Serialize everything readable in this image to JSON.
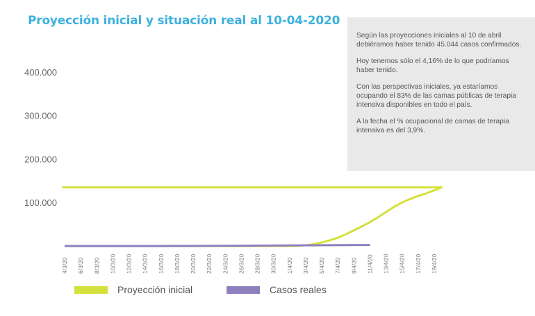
{
  "title": "Proyección inicial y situación real al 10-04-2020",
  "note": {
    "paragraphs": [
      "Según las proyecciones iniciales al 10 de abril debiéramos haber tenido 45.044 casos confirmados.",
      "Hoy tenemos sólo el 4,16% de lo que podríamos haber tenido.",
      "Con las perspectivas iniciales, ya estaríamos ocupando el 83% de las camas públicas de terapia intensiva disponibles en todo el país.",
      "A la fecha el % ocupacional de camas de terapia intensiva es del 3,9%."
    ]
  },
  "chart_data": {
    "type": "line",
    "title": "Proyección inicial y situación real al 10-04-2020",
    "xlabel": "",
    "ylabel": "",
    "ylim": [
      0,
      440000
    ],
    "y_ticks": [
      {
        "v": 100000,
        "label": "100.000"
      },
      {
        "v": 200000,
        "label": "200.000"
      },
      {
        "v": 300000,
        "label": "300.000"
      },
      {
        "v": 400000,
        "label": "400.000"
      }
    ],
    "x_tick_labels": [
      "4/3/20",
      "6/3/20",
      "8/3/20",
      "10/3/20",
      "12/3/20",
      "14/3/20",
      "16/3/20",
      "18/3/20",
      "20/3/20",
      "22/3/20",
      "24/3/20",
      "26/3/20",
      "28/3/20",
      "30/3/20",
      "1/4/20",
      "3/4/20",
      "5/4/20",
      "7/4/20",
      "9/4/20",
      "11/4/20",
      "13/4/20",
      "15/4/20",
      "17/4/20",
      "19/4/20"
    ],
    "x_start": "4/3/20",
    "legend_position": "bottom",
    "series": [
      {
        "name": "Proyección inicial",
        "color": "#d4e03c",
        "reference_level": 135000,
        "values_by_day": [
          0,
          0,
          0,
          0,
          0,
          0,
          0,
          0,
          0,
          0,
          0,
          0,
          0,
          0,
          0,
          0,
          0,
          0,
          0,
          0,
          0,
          0,
          0,
          0,
          0,
          0,
          0,
          0,
          0,
          500,
          1500,
          4000,
          8000,
          13000,
          19000,
          27000,
          36000,
          45000,
          55000,
          66000,
          78000,
          90000,
          100000,
          108000,
          115000,
          121000,
          128000,
          135000
        ]
      },
      {
        "name": "Casos reales",
        "color": "#8e7fbf",
        "values_by_day": [
          2,
          8,
          12,
          17,
          19,
          21,
          31,
          34,
          45,
          56,
          65,
          79,
          97,
          128,
          158,
          225,
          266,
          301,
          387,
          502,
          589,
          690,
          745,
          820,
          966,
          1054,
          1133,
          1265,
          1353,
          1451,
          1554,
          1628,
          1715,
          1795,
          1894,
          1975,
          2142,
          2208,
          2277
        ]
      }
    ]
  }
}
